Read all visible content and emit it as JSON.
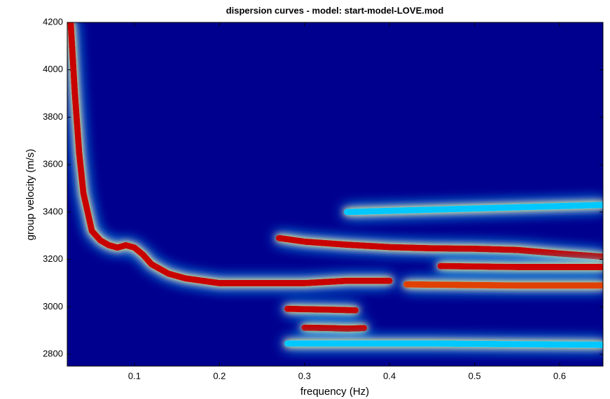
{
  "chart_data": {
    "type": "line",
    "title": "dispersion curves - model: start-model-LOVE.mod",
    "x_label": "frequency (Hz)",
    "y_label": "group velocity (m/s)",
    "xlim": [
      0.021,
      0.651
    ],
    "ylim": [
      2750,
      4200
    ],
    "xticks": [
      0.1,
      0.2,
      0.3,
      0.4,
      0.5,
      0.6
    ],
    "yticks": [
      2800,
      3000,
      3200,
      3400,
      3600,
      3800,
      4000,
      4200
    ],
    "background": "#00008f",
    "series": [
      {
        "color": "#c80000",
        "x": [
          0.025,
          0.03,
          0.035,
          0.04,
          0.05,
          0.06,
          0.07,
          0.08,
          0.09,
          0.1,
          0.11,
          0.12,
          0.14,
          0.16,
          0.2,
          0.25,
          0.3,
          0.35,
          0.4
        ],
        "values": [
          4200,
          3900,
          3650,
          3480,
          3320,
          3280,
          3260,
          3250,
          3260,
          3250,
          3220,
          3180,
          3140,
          3120,
          3100,
          3100,
          3100,
          3110,
          3110
        ]
      },
      {
        "color": "#c80000",
        "x": [
          0.27,
          0.3,
          0.35,
          0.4,
          0.45,
          0.5,
          0.55,
          0.6,
          0.65
        ],
        "values": [
          3290,
          3275,
          3262,
          3252,
          3247,
          3245,
          3240,
          3225,
          3212
        ]
      },
      {
        "color": "#d00000",
        "x": [
          0.46,
          0.5,
          0.55,
          0.6,
          0.65
        ],
        "values": [
          3172,
          3170,
          3168,
          3168,
          3168
        ]
      },
      {
        "color": "#e04000",
        "x": [
          0.42,
          0.5,
          0.55,
          0.6,
          0.65
        ],
        "values": [
          3095,
          3092,
          3090,
          3090,
          3090
        ]
      },
      {
        "color": "#c80000",
        "x": [
          0.28,
          0.3,
          0.33,
          0.36
        ],
        "values": [
          2992,
          2990,
          2988,
          2985
        ]
      },
      {
        "color": "#c80000",
        "x": [
          0.3,
          0.33,
          0.35,
          0.37
        ],
        "values": [
          2912,
          2910,
          2908,
          2910
        ]
      },
      {
        "color": "#00c8ff",
        "x": [
          0.28,
          0.35,
          0.45,
          0.55,
          0.65
        ],
        "values": [
          2845,
          2845,
          2845,
          2842,
          2840
        ]
      },
      {
        "color": "#00c8ff",
        "x": [
          0.35,
          0.45,
          0.55,
          0.65
        ],
        "values": [
          3400,
          3410,
          3420,
          3430
        ]
      }
    ]
  }
}
